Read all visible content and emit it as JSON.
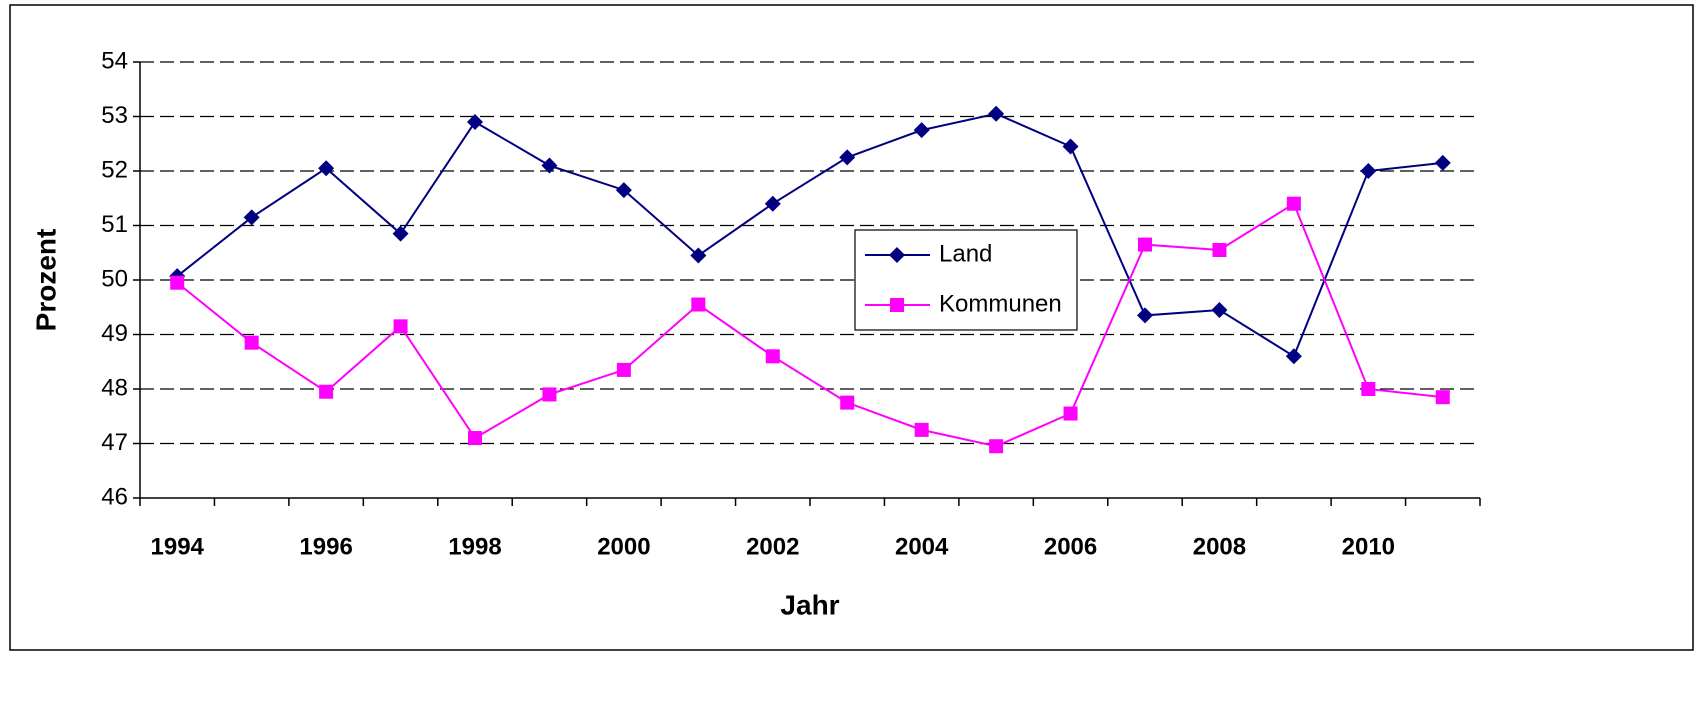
{
  "chart_data": {
    "type": "line",
    "xlabel": "Jahr",
    "ylabel": "Prozent",
    "categories": [
      "1994",
      null,
      "1996",
      null,
      "1998",
      null,
      "2000",
      null,
      "2002",
      null,
      "2004",
      null,
      "2006",
      null,
      "2008",
      null,
      "2010",
      null
    ],
    "series": [
      {
        "name": "Land",
        "color": "#000080",
        "marker": "diamond",
        "values": [
          50.07,
          51.15,
          52.05,
          50.85,
          52.9,
          52.1,
          51.65,
          50.45,
          51.4,
          52.25,
          52.75,
          53.05,
          52.45,
          49.35,
          49.45,
          48.6,
          52.0,
          52.15
        ]
      },
      {
        "name": "Kommunen",
        "color": "#ff00ff",
        "marker": "square",
        "values": [
          49.95,
          48.85,
          47.95,
          49.15,
          47.1,
          47.9,
          48.35,
          49.55,
          48.6,
          47.75,
          47.25,
          46.95,
          47.55,
          50.65,
          50.55,
          51.4,
          48.0,
          47.85
        ]
      }
    ],
    "ylim": [
      46,
      54
    ],
    "yticks": [
      46,
      47,
      48,
      49,
      50,
      51,
      52,
      53,
      54
    ],
    "grid": true,
    "legend": "center"
  }
}
